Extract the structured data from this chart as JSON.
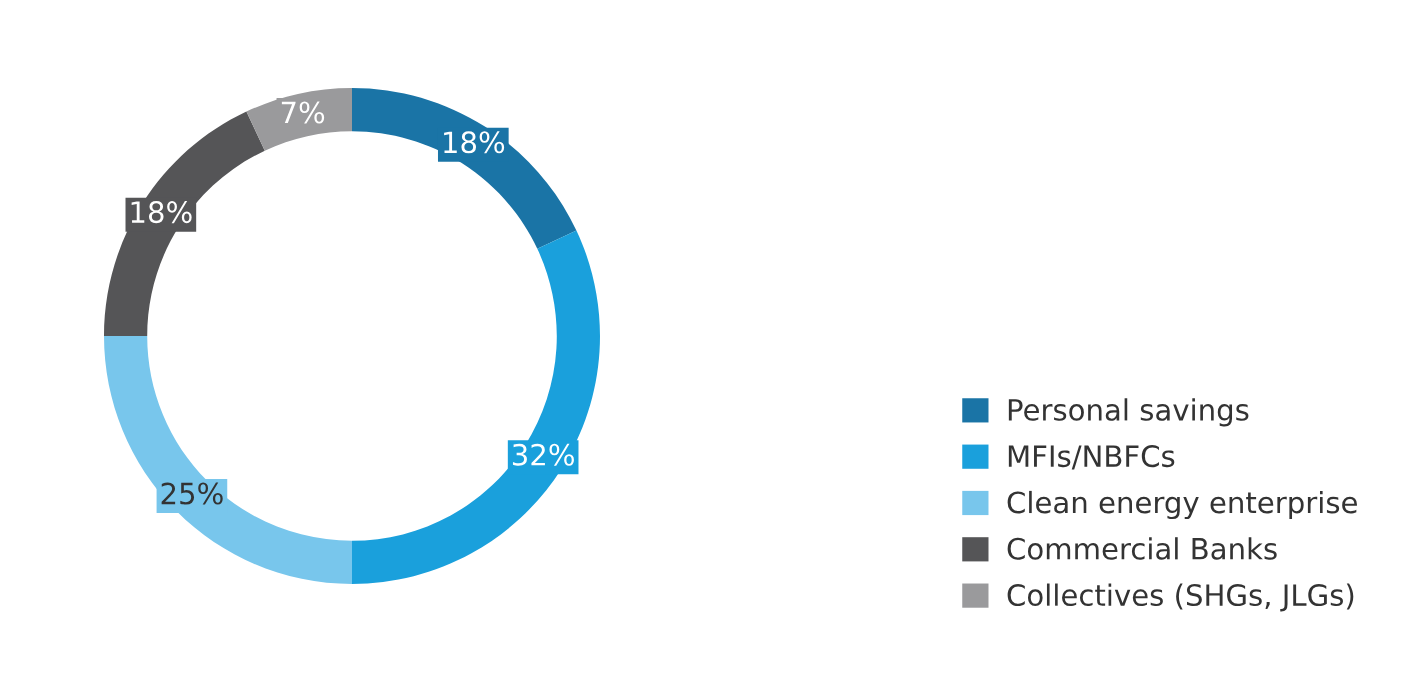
{
  "chart_data": {
    "type": "donut",
    "categories": [
      "Personal savings",
      "MFIs/NBFCs",
      "Clean energy enterprise",
      "Commercial Banks",
      "Collectives (SHGs, JLGs)"
    ],
    "values": [
      18,
      32,
      25,
      18,
      7
    ],
    "colors": [
      "#1a74a6",
      "#1aa0dc",
      "#78c6ec",
      "#555557",
      "#9a9a9c"
    ],
    "value_labels": [
      "18%",
      "32%",
      "25%",
      "18%",
      "7%"
    ],
    "legend": "bottom right"
  }
}
